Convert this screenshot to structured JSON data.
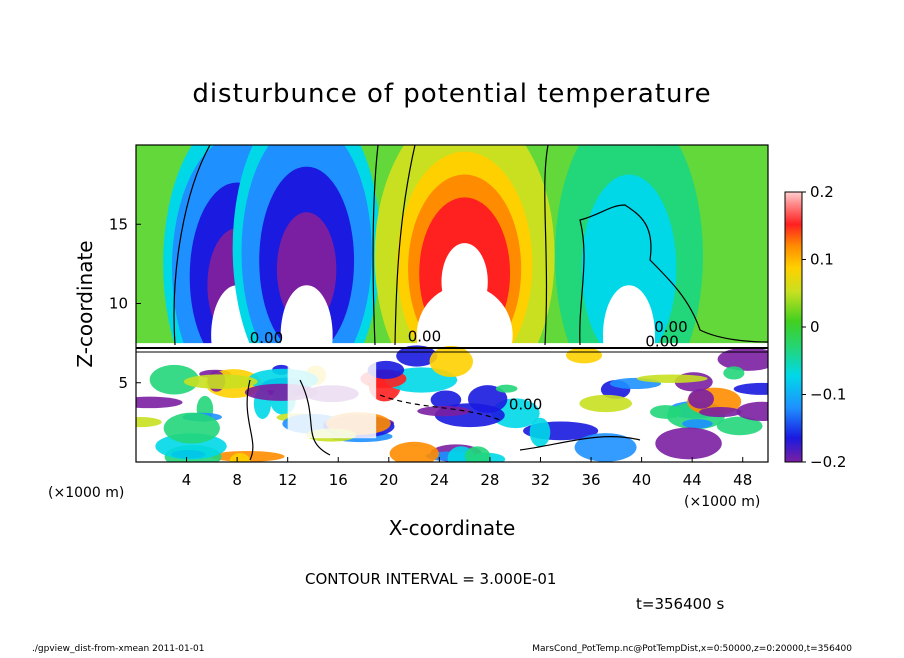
{
  "chart_data": {
    "type": "heatmap",
    "title": "disturbunce of potential temperature",
    "xlabel": "X-coordinate",
    "ylabel": "Z-coordinate",
    "x_unit_left": "(×1000 m)",
    "x_unit_right": "(×1000 m)",
    "xlim": [
      0,
      50
    ],
    "ylim": [
      0,
      20
    ],
    "x_ticks": [
      4,
      8,
      12,
      16,
      20,
      24,
      28,
      32,
      36,
      40,
      44,
      48
    ],
    "y_ticks": [
      5,
      10,
      15
    ],
    "colorbar": {
      "range": [
        -0.2,
        0.2
      ],
      "ticks": [
        0.2,
        0.1,
        0,
        -0.1,
        -0.2
      ],
      "tick_labels": [
        "0.2",
        "0.1",
        "0",
        "−0.1",
        "−0.2"
      ]
    },
    "features": [
      {
        "x": 8,
        "z": 12.5,
        "value": -0.2
      },
      {
        "x": 13.5,
        "z": 13.5,
        "value": -0.2
      },
      {
        "x": 26,
        "z": 13,
        "value": 0.2
      },
      {
        "x": 39,
        "z": 13,
        "value": -0.05
      }
    ],
    "contour_labels": [
      "0.00",
      "0.00",
      "0.00",
      "0.00",
      "0.00"
    ],
    "contour_interval": "CONTOUR INTERVAL = 3.000E-01",
    "time": "t=356400 s"
  },
  "footer": {
    "left": "./gpview_dist-from-xmean  2011-01-01",
    "right": "MarsCond_PotTemp.nc@PotTempDist,x=0:50000,z=0:20000,t=356400"
  }
}
